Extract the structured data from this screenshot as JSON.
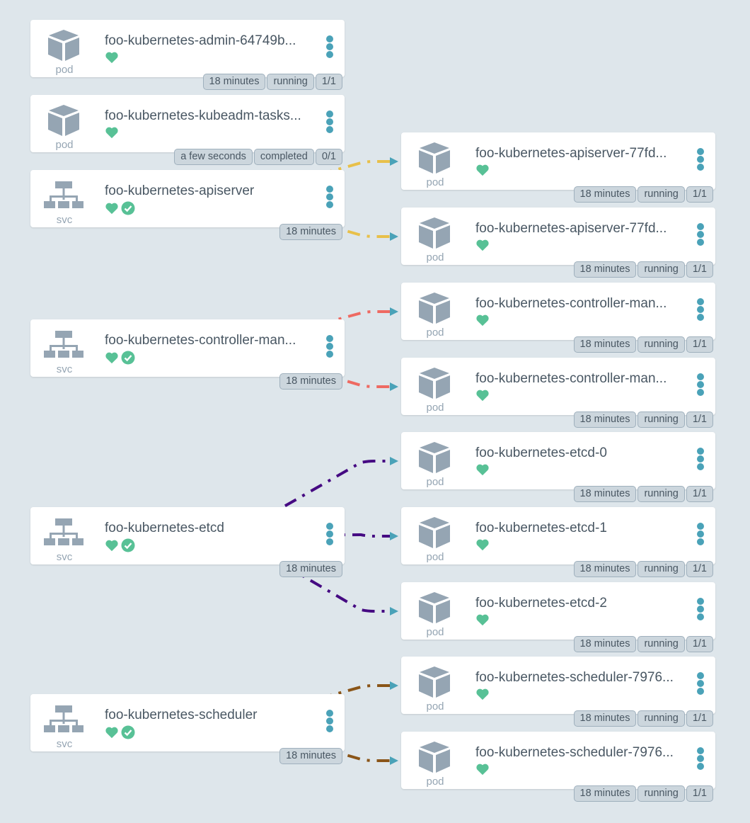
{
  "colors": {
    "healthy": "#58c196",
    "menu": "#4aa2b8",
    "icon": "#95a5b3"
  },
  "nodes": [
    {
      "id": "admin",
      "kind": "pod",
      "name": "foo-kubernetes-admin-64749b...",
      "synced": false,
      "badges": [
        "18 minutes",
        "running",
        "1/1"
      ]
    },
    {
      "id": "kubeadm",
      "kind": "pod",
      "name": "foo-kubernetes-kubeadm-tasks...",
      "synced": false,
      "badges": [
        "a few seconds",
        "completed",
        "0/1"
      ]
    },
    {
      "id": "svc-apiserver",
      "kind": "svc",
      "name": "foo-kubernetes-apiserver",
      "synced": true,
      "badges": [
        "18 minutes"
      ]
    },
    {
      "id": "svc-controller",
      "kind": "svc",
      "name": "foo-kubernetes-controller-man...",
      "synced": true,
      "badges": [
        "18 minutes"
      ]
    },
    {
      "id": "svc-etcd",
      "kind": "svc",
      "name": "foo-kubernetes-etcd",
      "synced": true,
      "badges": [
        "18 minutes"
      ]
    },
    {
      "id": "svc-scheduler",
      "kind": "svc",
      "name": "foo-kubernetes-scheduler",
      "synced": true,
      "badges": [
        "18 minutes"
      ]
    },
    {
      "id": "pod-api-1",
      "kind": "pod",
      "name": "foo-kubernetes-apiserver-77fd...",
      "synced": false,
      "badges": [
        "18 minutes",
        "running",
        "1/1"
      ]
    },
    {
      "id": "pod-api-2",
      "kind": "pod",
      "name": "foo-kubernetes-apiserver-77fd...",
      "synced": false,
      "badges": [
        "18 minutes",
        "running",
        "1/1"
      ]
    },
    {
      "id": "pod-cm-1",
      "kind": "pod",
      "name": "foo-kubernetes-controller-man...",
      "synced": false,
      "badges": [
        "18 minutes",
        "running",
        "1/1"
      ]
    },
    {
      "id": "pod-cm-2",
      "kind": "pod",
      "name": "foo-kubernetes-controller-man...",
      "synced": false,
      "badges": [
        "18 minutes",
        "running",
        "1/1"
      ]
    },
    {
      "id": "pod-etcd-0",
      "kind": "pod",
      "name": "foo-kubernetes-etcd-0",
      "synced": false,
      "badges": [
        "18 minutes",
        "running",
        "1/1"
      ]
    },
    {
      "id": "pod-etcd-1",
      "kind": "pod",
      "name": "foo-kubernetes-etcd-1",
      "synced": false,
      "badges": [
        "18 minutes",
        "running",
        "1/1"
      ]
    },
    {
      "id": "pod-etcd-2",
      "kind": "pod",
      "name": "foo-kubernetes-etcd-2",
      "synced": false,
      "badges": [
        "18 minutes",
        "running",
        "1/1"
      ]
    },
    {
      "id": "pod-sched-1",
      "kind": "pod",
      "name": "foo-kubernetes-scheduler-7976...",
      "synced": false,
      "badges": [
        "18 minutes",
        "running",
        "1/1"
      ]
    },
    {
      "id": "pod-sched-2",
      "kind": "pod",
      "name": "foo-kubernetes-scheduler-7976...",
      "synced": false,
      "badges": [
        "18 minutes",
        "running",
        "1/1"
      ]
    }
  ],
  "edges": [
    {
      "from": "svc-apiserver",
      "to": "pod-api-1",
      "color": "#e8c04a"
    },
    {
      "from": "svc-apiserver",
      "to": "pod-api-2",
      "color": "#e8c04a"
    },
    {
      "from": "svc-controller",
      "to": "pod-cm-1",
      "color": "#ee6a62"
    },
    {
      "from": "svc-controller",
      "to": "pod-cm-2",
      "color": "#ee6a62"
    },
    {
      "from": "svc-etcd",
      "to": "pod-etcd-0",
      "color": "#450a82"
    },
    {
      "from": "svc-etcd",
      "to": "pod-etcd-1",
      "color": "#450a82"
    },
    {
      "from": "svc-etcd",
      "to": "pod-etcd-2",
      "color": "#450a82"
    },
    {
      "from": "svc-scheduler",
      "to": "pod-sched-1",
      "color": "#8a5518"
    },
    {
      "from": "svc-scheduler",
      "to": "pod-sched-2",
      "color": "#8a5518"
    }
  ]
}
